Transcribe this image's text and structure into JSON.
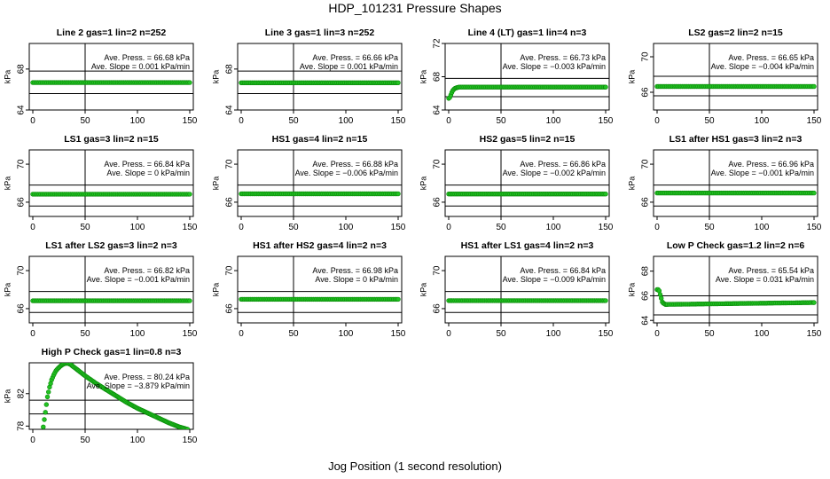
{
  "page": {
    "title": "HDP_101231  Pressure Shapes",
    "x_axis_title": "Jog Position (1 second resolution)"
  },
  "colors": {
    "points": "#22c222",
    "point_stroke": "#0a8a0a",
    "axis": "#000000"
  },
  "chart_data": [
    {
      "type": "scatter",
      "title": "Line 2 gas=1 lin=2 n=252",
      "ylabel": "kPa",
      "xlim": [
        0,
        150
      ],
      "ylim": [
        64,
        70.5
      ],
      "xticks": [
        0,
        50,
        100,
        150
      ],
      "yticks": [
        64,
        68
      ],
      "hlines": [
        67.8,
        65.6
      ],
      "vline": 50,
      "annotations": [
        "Ave. Press. = 66.68 kPa",
        "Ave. Slope = 0.001  kPa/min"
      ],
      "series": [
        {
          "x": [
            0,
            150
          ],
          "y": [
            66.68,
            66.68
          ]
        }
      ]
    },
    {
      "type": "scatter",
      "title": "Line 3 gas=1 lin=3 n=252",
      "ylabel": "kPa",
      "xlim": [
        0,
        150
      ],
      "ylim": [
        64,
        70.5
      ],
      "xticks": [
        0,
        50,
        100,
        150
      ],
      "yticks": [
        64,
        68
      ],
      "hlines": [
        67.8,
        65.6
      ],
      "vline": 50,
      "annotations": [
        "Ave. Press. = 66.66 kPa",
        "Ave. Slope = 0.001  kPa/min"
      ],
      "series": [
        {
          "x": [
            0,
            150
          ],
          "y": [
            66.66,
            66.66
          ]
        }
      ]
    },
    {
      "type": "scatter",
      "title": "Line 4 (LT) gas=1 lin=4 n=3",
      "ylabel": "kPa",
      "xlim": [
        0,
        150
      ],
      "ylim": [
        64,
        72
      ],
      "xticks": [
        0,
        50,
        100,
        150
      ],
      "yticks": [
        64,
        68,
        72
      ],
      "hlines": [
        67.8,
        65.6
      ],
      "vline": 50,
      "annotations": [
        "Ave. Press. = 66.73 kPa",
        "Ave. Slope = -0.003  kPa/min"
      ],
      "series": [
        {
          "x": [
            0,
            1,
            2,
            3,
            4,
            5,
            6,
            8,
            10,
            150
          ],
          "y": [
            65.4,
            65.5,
            65.8,
            66.1,
            66.35,
            66.5,
            66.6,
            66.7,
            66.75,
            66.75
          ]
        }
      ]
    },
    {
      "type": "scatter",
      "title": "LS2 gas=2 lin=2 n=15",
      "ylabel": "kPa",
      "xlim": [
        0,
        150
      ],
      "ylim": [
        64,
        71.5
      ],
      "xticks": [
        0,
        50,
        100,
        150
      ],
      "yticks": [
        66,
        70
      ],
      "hlines": [
        67.8,
        65.6
      ],
      "vline": 50,
      "annotations": [
        "Ave. Press. = 66.65 kPa",
        "Ave. Slope = -0.004  kPa/min"
      ],
      "series": [
        {
          "x": [
            0,
            150
          ],
          "y": [
            66.65,
            66.65
          ]
        }
      ]
    },
    {
      "type": "scatter",
      "title": "LS1 gas=3 lin=2 n=15",
      "ylabel": "kPa",
      "xlim": [
        0,
        150
      ],
      "ylim": [
        64.5,
        71.5
      ],
      "xticks": [
        0,
        50,
        100,
        150
      ],
      "yticks": [
        66,
        70
      ],
      "hlines": [
        67.8,
        65.6
      ],
      "vline": 50,
      "annotations": [
        "Ave. Press. = 66.84 kPa",
        "Ave. Slope = 0  kPa/min"
      ],
      "series": [
        {
          "x": [
            0,
            150
          ],
          "y": [
            66.84,
            66.84
          ]
        }
      ]
    },
    {
      "type": "scatter",
      "title": "HS1 gas=4 lin=2 n=15",
      "ylabel": "kPa",
      "xlim": [
        0,
        150
      ],
      "ylim": [
        64.5,
        71.5
      ],
      "xticks": [
        0,
        50,
        100,
        150
      ],
      "yticks": [
        66,
        70
      ],
      "hlines": [
        67.8,
        65.6
      ],
      "vline": 50,
      "annotations": [
        "Ave. Press. = 66.88 kPa",
        "Ave. Slope = -0.006  kPa/min"
      ],
      "series": [
        {
          "x": [
            0,
            150
          ],
          "y": [
            66.88,
            66.88
          ]
        }
      ]
    },
    {
      "type": "scatter",
      "title": "HS2 gas=5 lin=2 n=15",
      "ylabel": "kPa",
      "xlim": [
        0,
        150
      ],
      "ylim": [
        64.5,
        71.5
      ],
      "xticks": [
        0,
        50,
        100,
        150
      ],
      "yticks": [
        66,
        70
      ],
      "hlines": [
        67.8,
        65.6
      ],
      "vline": 50,
      "annotations": [
        "Ave. Press. = 66.86 kPa",
        "Ave. Slope = -0.002  kPa/min"
      ],
      "series": [
        {
          "x": [
            0,
            150
          ],
          "y": [
            66.86,
            66.86
          ]
        }
      ]
    },
    {
      "type": "scatter",
      "title": "LS1 after HS1 gas=3 lin=2 n=3",
      "ylabel": "kPa",
      "xlim": [
        0,
        150
      ],
      "ylim": [
        64.5,
        71.5
      ],
      "xticks": [
        0,
        50,
        100,
        150
      ],
      "yticks": [
        66,
        70
      ],
      "hlines": [
        67.8,
        65.6
      ],
      "vline": 50,
      "annotations": [
        "Ave. Press. = 66.96 kPa",
        "Ave. Slope = -0.001  kPa/min"
      ],
      "series": [
        {
          "x": [
            0,
            150
          ],
          "y": [
            66.96,
            66.96
          ]
        }
      ]
    },
    {
      "type": "scatter",
      "title": "LS1 after LS2 gas=3 lin=2 n=3",
      "ylabel": "kPa",
      "xlim": [
        0,
        150
      ],
      "ylim": [
        64.5,
        71.5
      ],
      "xticks": [
        0,
        50,
        100,
        150
      ],
      "yticks": [
        66,
        70
      ],
      "hlines": [
        67.8,
        65.6
      ],
      "vline": 50,
      "annotations": [
        "Ave. Press. = 66.82 kPa",
        "Ave. Slope = -0.001  kPa/min"
      ],
      "series": [
        {
          "x": [
            0,
            150
          ],
          "y": [
            66.82,
            66.82
          ]
        }
      ]
    },
    {
      "type": "scatter",
      "title": "HS1 after HS2 gas=4 lin=2 n=3",
      "ylabel": "kPa",
      "xlim": [
        0,
        150
      ],
      "ylim": [
        64.5,
        71.5
      ],
      "xticks": [
        0,
        50,
        100,
        150
      ],
      "yticks": [
        66,
        70
      ],
      "hlines": [
        67.8,
        65.6
      ],
      "vline": 50,
      "annotations": [
        "Ave. Press. = 66.98 kPa",
        "Ave. Slope = 0  kPa/min"
      ],
      "series": [
        {
          "x": [
            0,
            150
          ],
          "y": [
            66.98,
            66.98
          ]
        }
      ]
    },
    {
      "type": "scatter",
      "title": "HS1 after LS1 gas=4 lin=2 n=3",
      "ylabel": "kPa",
      "xlim": [
        0,
        150
      ],
      "ylim": [
        64.5,
        71.5
      ],
      "xticks": [
        0,
        50,
        100,
        150
      ],
      "yticks": [
        66,
        70
      ],
      "hlines": [
        67.8,
        65.6
      ],
      "vline": 50,
      "annotations": [
        "Ave. Press. = 66.84 kPa",
        "Ave. Slope = -0.009  kPa/min"
      ],
      "series": [
        {
          "x": [
            0,
            150
          ],
          "y": [
            66.84,
            66.84
          ]
        }
      ]
    },
    {
      "type": "scatter",
      "title": "Low P Check gas=1.2 lin=2 n=6",
      "ylabel": "kPa",
      "xlim": [
        0,
        150
      ],
      "ylim": [
        63.8,
        69.2
      ],
      "xticks": [
        0,
        50,
        100,
        150
      ],
      "yticks": [
        64,
        66,
        68
      ],
      "hlines": [
        66.0,
        64.45
      ],
      "vline": 50,
      "annotations": [
        "Ave. Press. = 65.54 kPa",
        "Ave. Slope = 0.031  kPa/min"
      ],
      "series": [
        {
          "x": [
            0,
            1,
            2,
            3,
            4,
            5,
            6,
            7,
            8,
            9,
            10,
            150
          ],
          "y": [
            66.5,
            66.5,
            66.4,
            66.1,
            65.8,
            65.5,
            65.4,
            65.35,
            65.3,
            65.3,
            65.3,
            65.45
          ]
        }
      ]
    },
    {
      "type": "scatter",
      "title": "High P Check gas=1 lin=0.8 n=3",
      "ylabel": "kPa",
      "xlim": [
        0,
        150
      ],
      "ylim": [
        77.6,
        85.8
      ],
      "xticks": [
        0,
        50,
        100,
        150
      ],
      "yticks": [
        78,
        82
      ],
      "hlines": [
        81.2,
        79.5
      ],
      "vline": 50,
      "annotations": [
        "Ave. Press. = 80.24 kPa",
        "Ave. Slope = -3.879  kPa/min"
      ],
      "series": [
        {
          "x": [
            10,
            12,
            14,
            16,
            18,
            20,
            22,
            24,
            26,
            28,
            30,
            32,
            34,
            36,
            38,
            40,
            50,
            60,
            70,
            80,
            90,
            100,
            110,
            120,
            130,
            140,
            148
          ],
          "y": [
            77.9,
            79.7,
            81.6,
            82.8,
            83.7,
            84.3,
            84.8,
            85.1,
            85.35,
            85.55,
            85.68,
            85.75,
            85.72,
            85.6,
            85.4,
            85.2,
            84.2,
            83.3,
            82.5,
            81.7,
            80.9,
            80.2,
            79.6,
            79.0,
            78.4,
            77.9,
            77.6
          ]
        }
      ]
    }
  ]
}
